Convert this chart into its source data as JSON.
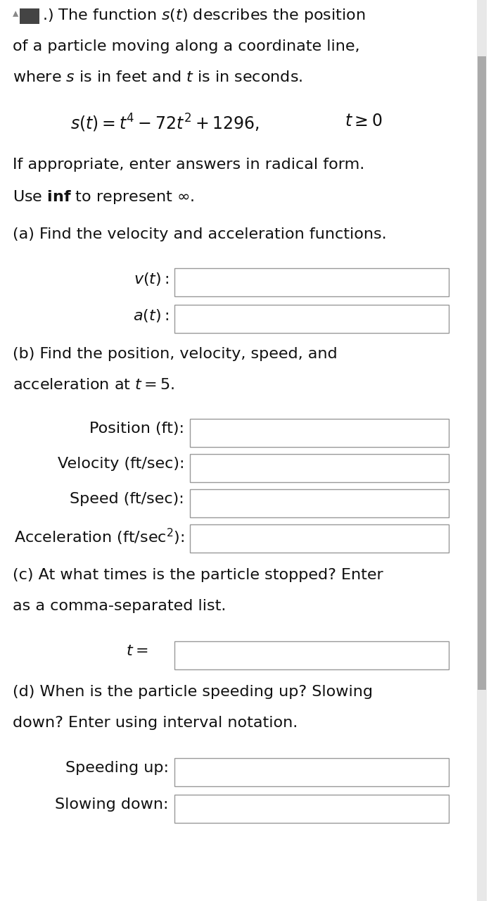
{
  "bg_color": "#ffffff",
  "content_bg": "#ffffff",
  "text_color": "#111111",
  "box_bg": "#ffffff",
  "box_border": "#999999",
  "scrollbar_color": "#aaaaaa",
  "scrollbar_bg": "#e0e0e0",
  "icon_color": "#444444",
  "font_size_body": 16,
  "font_size_math": 17,
  "title_line1": ".) The function $s(t)$ describes the position",
  "title_line2": "of a particle moving along a coordinate line,",
  "title_line3": "where $s$ is in feet and $t$ is in seconds.",
  "equation": "$s(t) = t^4 - 72t^2 + 1296,$",
  "equation_condition": "$t \\geq 0$",
  "note_line1": "If appropriate, enter answers in radical form.",
  "note_line2": "Use $\\mathbf{inf}$ to represent $\\infty$.",
  "part_a_title": "(a) Find the velocity and acceleration functions.",
  "label_vt": "$v(t):$",
  "label_at": "$a(t):$",
  "part_b_title_line1": "(b) Find the position, velocity, speed, and",
  "part_b_title_line2": "acceleration at $t = 5$.",
  "label_position": "Position (ft):",
  "label_velocity": "Velocity (ft/sec):",
  "label_speed": "Speed (ft/sec):",
  "label_acceleration": "Acceleration (ft/sec$^2$):",
  "part_c_title_line1": "(c) At what times is the particle stopped? Enter",
  "part_c_title_line2": "as a comma-separated list.",
  "label_t": "$t=$",
  "part_d_title_line1": "(d) When is the particle speeding up? Slowing",
  "part_d_title_line2": "down? Enter using interval notation.",
  "label_speeding": "Speeding up:",
  "label_slowing": "Slowing down:"
}
